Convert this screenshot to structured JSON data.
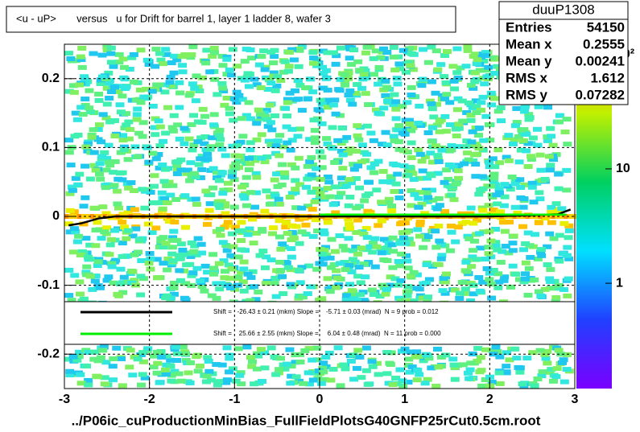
{
  "chart_data": {
    "type": "line",
    "title": "<u - uP>       versus   u for Drift for barrel 1, layer 1 ladder 8, wafer 3",
    "footer": "../P06ic_cuProductionMinBias_FullFieldPlotsG40GNFP25rCut0.5cm.root",
    "xlim": [
      -3,
      3
    ],
    "xticks": [
      -3,
      -2,
      -1,
      0,
      1,
      2,
      3
    ],
    "ylim": [
      -0.25,
      0.25
    ],
    "yticks": [
      -0.2,
      -0.1,
      0,
      0.1,
      0.2
    ],
    "grid": true,
    "zscale": "log",
    "zlim": [
      0.12,
      123
    ],
    "zticks": [
      1,
      10,
      {
        "value": 100,
        "label": "10²"
      }
    ],
    "series": [
      {
        "name": "Shift =   -26.43 ± 0.21 (mkm) Slope =    -5.71 ± 0.03 (mrad)  N = 9 prob = 0.012",
        "color": "#000000",
        "x": [
          -2.95,
          -2.8,
          -2.6,
          -2.4,
          -2,
          -1,
          0,
          1,
          2,
          2.8,
          2.95
        ],
        "values": [
          -0.013,
          -0.01,
          -0.003,
          0,
          0,
          0,
          0,
          0,
          0,
          0.003,
          0.01
        ]
      },
      {
        "name": "Shift =    25.66 ± 2.55 (mkm) Slope =     6.04 ± 0.48 (mrad)  N = 11 prob = 0.000",
        "color": "#00ee00",
        "x": [
          0,
          2.9
        ],
        "values": [
          0.0026,
          0.0026
        ]
      }
    ],
    "stats": {
      "title": "duuP1308",
      "rows": [
        [
          "Entries",
          "54150"
        ],
        [
          "Mean x",
          "0.2555"
        ],
        [
          "Mean y",
          "0.00241"
        ],
        [
          "RMS x",
          "1.612"
        ],
        [
          "RMS y",
          "0.07282"
        ]
      ]
    }
  }
}
